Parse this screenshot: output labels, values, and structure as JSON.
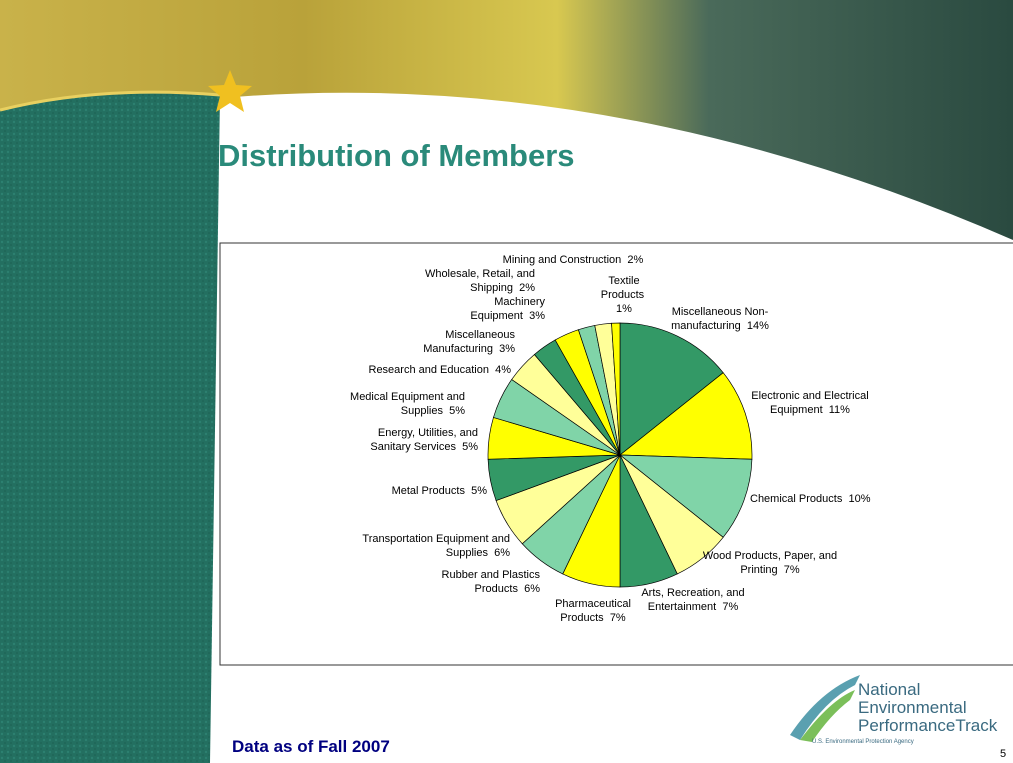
{
  "title": "Distribution of Members",
  "footer": "Data as of Fall 2007",
  "page_number": "5",
  "logo": {
    "line1": "National",
    "line2": "Environmental",
    "line3": "PerformanceTrack",
    "agency": "U.S. Environmental Protection Agency"
  },
  "chart_data": {
    "type": "pie",
    "categories": [
      "Miscellaneous Non-manufacturing",
      "Electronic and Electrical Equipment",
      "Chemical Products",
      "Wood Products, Paper, and Printing",
      "Arts, Recreation, and Entertainment",
      "Pharmaceutical Products",
      "Rubber and Plastics Products",
      "Transportation Equipment and Supplies",
      "Metal Products",
      "Energy, Utilities, and Sanitary Services",
      "Medical Equipment and Supplies",
      "Research and Education",
      "Miscellaneous Manufacturing",
      "Machinery Equipment",
      "Wholesale, Retail, and Shipping",
      "Mining and Construction",
      "Textile Products"
    ],
    "values": [
      14,
      11,
      10,
      7,
      7,
      7,
      6,
      6,
      5,
      5,
      5,
      4,
      3,
      3,
      2,
      2,
      1
    ],
    "value_labels": [
      "14%",
      "11%",
      "10%",
      "7%",
      "7%",
      "7%",
      "6%",
      "6%",
      "5%",
      "5%",
      "5%",
      "4%",
      "3%",
      "3%",
      "2%",
      "2%",
      "1%"
    ],
    "colors": [
      "#339966",
      "#ffff00",
      "#80d4a8",
      "#ffff99",
      "#339966",
      "#ffff00",
      "#80d4a8",
      "#ffff99",
      "#339966",
      "#ffff00",
      "#80d4a8",
      "#ffff99",
      "#339966",
      "#ffff00",
      "#80d4a8",
      "#ffff99",
      "#ffff00"
    ]
  }
}
